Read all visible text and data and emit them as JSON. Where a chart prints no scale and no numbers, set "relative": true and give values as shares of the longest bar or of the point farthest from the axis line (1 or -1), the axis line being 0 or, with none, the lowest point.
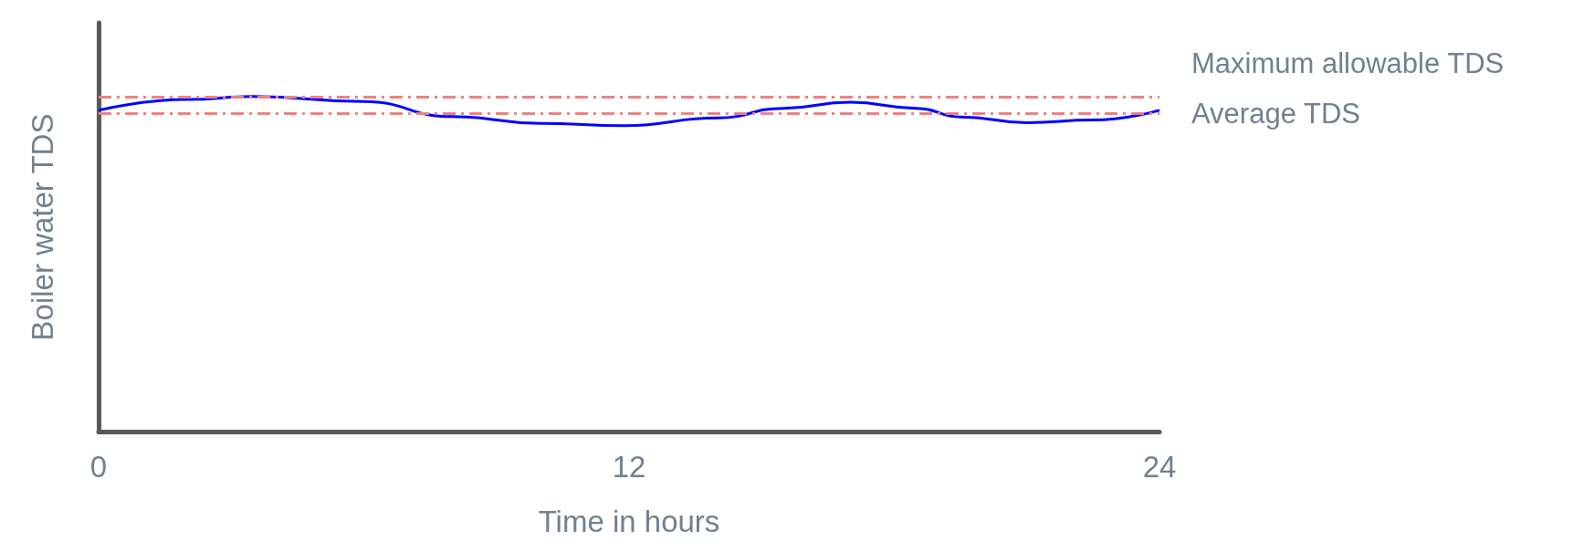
{
  "chart_data": {
    "type": "line",
    "relative": true,
    "xlabel": "Time in hours",
    "ylabel": "Boiler water TDS",
    "xlim": [
      0,
      24
    ],
    "xticks": [
      0,
      12,
      24
    ],
    "grid": false,
    "marker": "none",
    "line_style": "solid",
    "series": [
      {
        "color": "#0000ff",
        "x": [
          0,
          2,
          3.5,
          6,
          8,
          10,
          11.9,
          14,
          15.5,
          17,
          18.5,
          19.5,
          21,
          22.5,
          24
        ],
        "values": [
          0.959,
          0.991,
          1.0,
          0.985,
          0.94,
          0.92,
          0.913,
          0.936,
          0.965,
          0.983,
          0.965,
          0.939,
          0.922,
          0.93,
          0.959
        ]
      }
    ],
    "ref_lines": [
      {
        "axis": "y",
        "value": 1.0,
        "label": "Maximum allowable TDS",
        "color": "#f08080",
        "line_style": "dashed"
      },
      {
        "axis": "y",
        "value": 0.95,
        "label": "Average TDS",
        "color": "#f08080",
        "line_style": "dashed"
      }
    ]
  }
}
